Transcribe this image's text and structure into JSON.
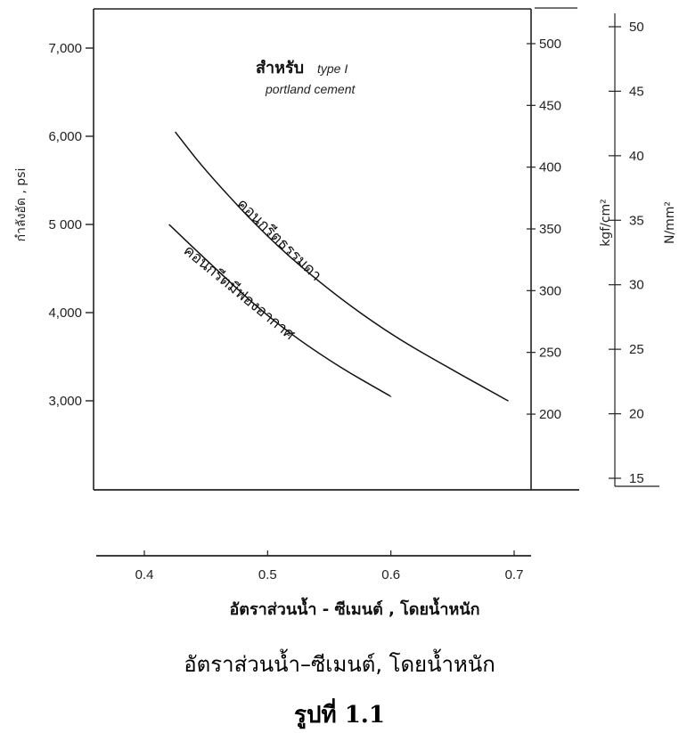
{
  "chart_data": {
    "type": "line",
    "title": "สำหรับ",
    "title_suffix": "type I",
    "subtitle": "portland cement",
    "xlabel": "อัตราส่วนน้ำ - ซีเมนต์ , โดยน้ำหนัก",
    "ylabel": "กำลังอัด , psi",
    "xlim": [
      0.4,
      0.7
    ],
    "ylim": [
      2000,
      7500
    ],
    "x_ticks": [
      0.4,
      0.5,
      0.6,
      0.7
    ],
    "x_tick_labels": [
      "0.4",
      "0.5",
      "0.6",
      "0.7"
    ],
    "y_ticks": [
      3000,
      4000,
      5000,
      6000,
      7000
    ],
    "y_tick_labels": [
      "3,000",
      "4,000",
      "5 000",
      "6,000",
      "7,000"
    ],
    "y2_label": "kgf/cm²",
    "y2_ticks": [
      200,
      250,
      300,
      350,
      400,
      450,
      500
    ],
    "y2_tick_labels": [
      "200",
      "250",
      "300",
      "350",
      "400",
      "450",
      "500"
    ],
    "y3_label": "N/mm²",
    "y3_ticks": [
      15,
      20,
      25,
      30,
      35,
      40,
      45,
      50
    ],
    "y3_tick_labels": [
      "15",
      "20",
      "25",
      "30",
      "35",
      "40",
      "45",
      "50"
    ],
    "grid": false,
    "series": [
      {
        "name": "คอนกรีตธรรมดา",
        "x": [
          0.425,
          0.45,
          0.5,
          0.55,
          0.6,
          0.65,
          0.695
        ],
        "y": [
          6050,
          5600,
          4850,
          4250,
          3750,
          3350,
          3000
        ]
      },
      {
        "name": "คอนกรีตมีฟองอากาศ",
        "x": [
          0.42,
          0.45,
          0.5,
          0.55,
          0.6
        ],
        "y": [
          5000,
          4600,
          3950,
          3450,
          3050
        ]
      }
    ]
  },
  "caption": {
    "xlabel": "อัตราส่วนน้ำ–ซีเมนต์, โดยน้ำหนัก",
    "figure": "รูปที่   1.1"
  }
}
